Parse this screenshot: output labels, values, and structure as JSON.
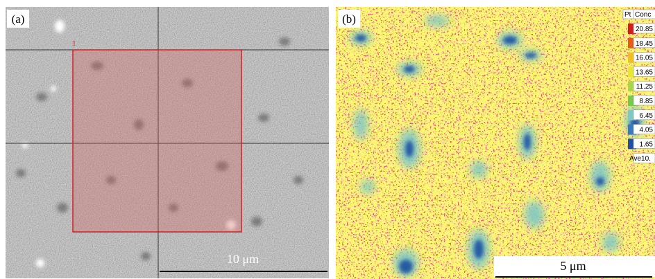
{
  "panel_a": {
    "label": "(a)",
    "region_label": "1",
    "scale_bar": "10 μm"
  },
  "panel_b": {
    "label": "(b)",
    "scale_bar": "5 μm",
    "legend": {
      "header": [
        "Pt",
        "Conc"
      ],
      "values": [
        "20.85",
        "18.45",
        "16.05",
        "13.65",
        "11.25",
        "8.85",
        "6.45",
        "4.05",
        "1.65",
        "Ave10."
      ]
    }
  }
}
